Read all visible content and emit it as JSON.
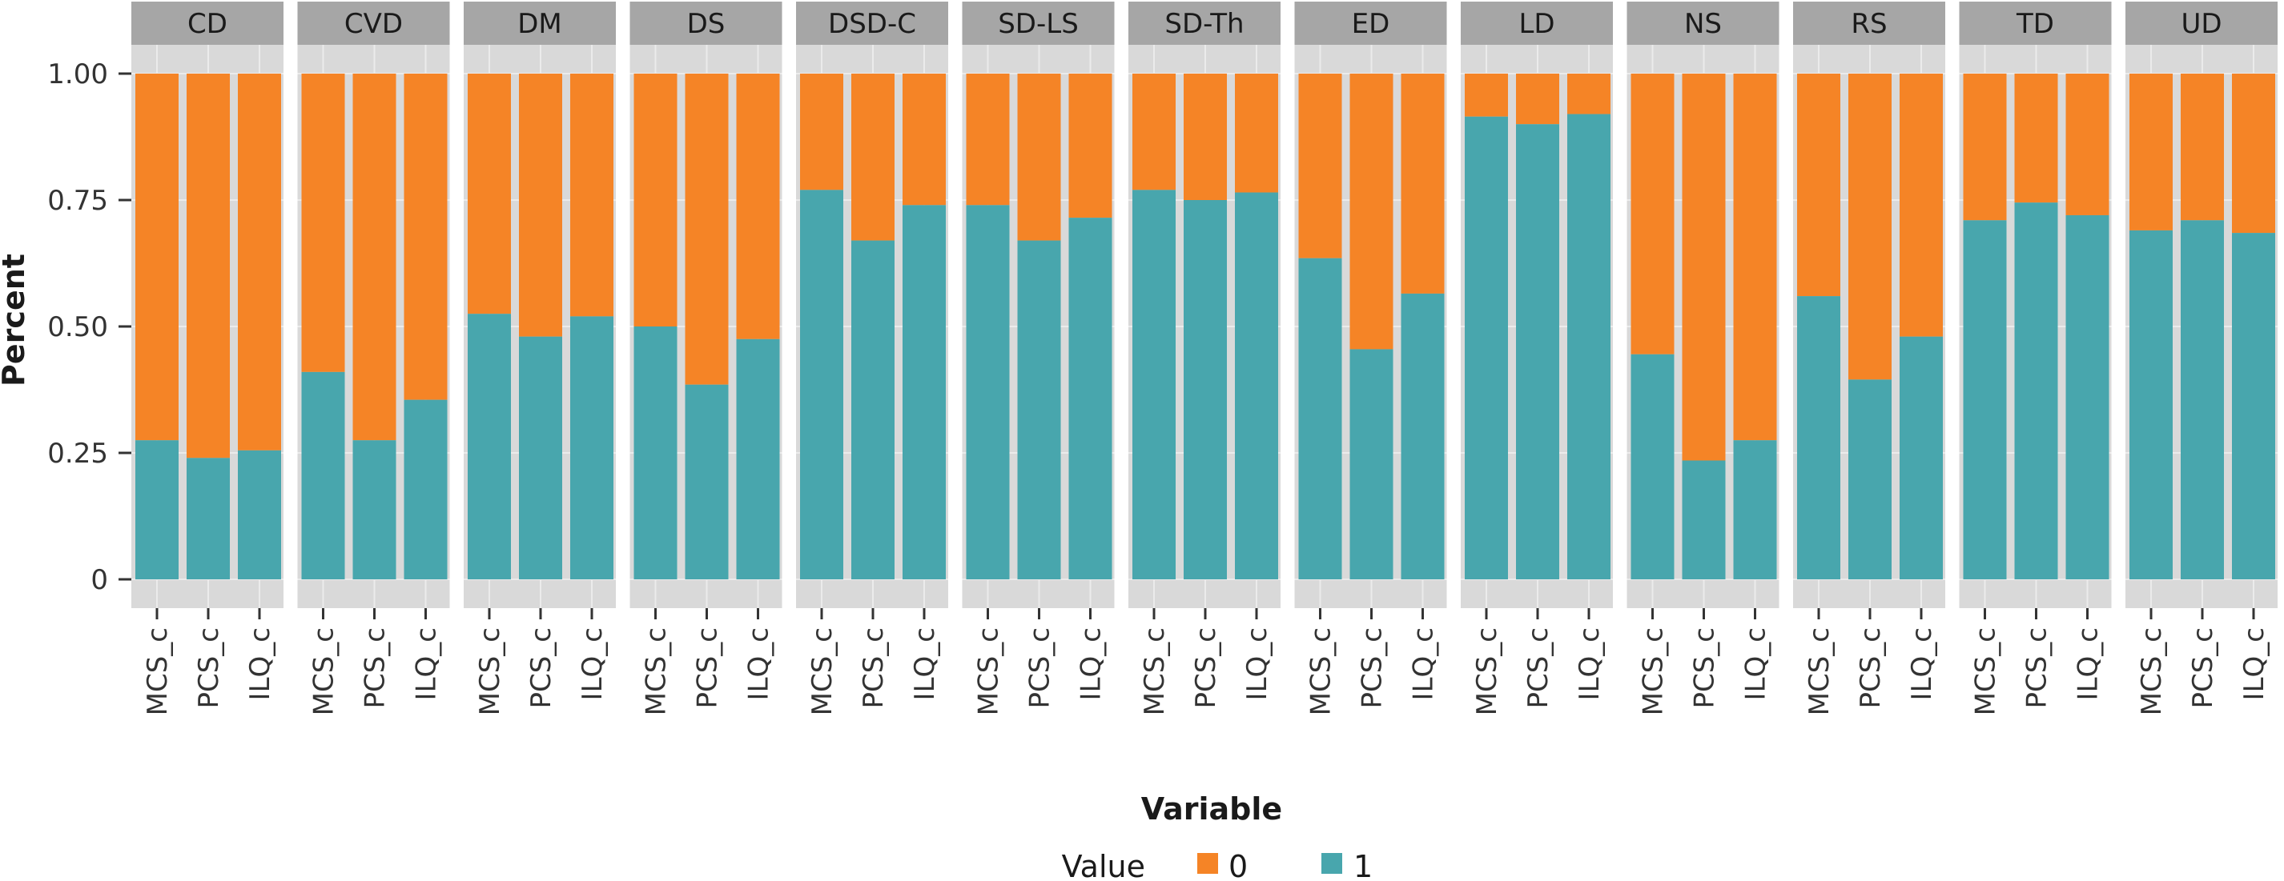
{
  "chart_data": {
    "type": "bar",
    "stacked": true,
    "facet_by": "panel",
    "ylabel": "Percent",
    "xlabel": "Variable",
    "ylim": [
      0,
      1
    ],
    "y_ticks": [
      "0",
      "0.25",
      "0.50",
      "0.75",
      "1.00"
    ],
    "y_tick_values": [
      0,
      0.25,
      0.5,
      0.75,
      1.0
    ],
    "grid": true,
    "legend": {
      "title": "Value",
      "placement": "bottom",
      "entries": [
        {
          "label": "0",
          "color": "#F58426"
        },
        {
          "label": "1",
          "color": "#48A6AD"
        }
      ]
    },
    "categories": [
      "MCS_c",
      "PCS_c",
      "ILQ_c"
    ],
    "panels": [
      {
        "name": "CD",
        "value_1": [
          0.275,
          0.24,
          0.255
        ]
      },
      {
        "name": "CVD",
        "value_1": [
          0.41,
          0.275,
          0.355
        ]
      },
      {
        "name": "DM",
        "value_1": [
          0.525,
          0.48,
          0.52
        ]
      },
      {
        "name": "DS",
        "value_1": [
          0.5,
          0.385,
          0.475
        ]
      },
      {
        "name": "DSD-C",
        "value_1": [
          0.77,
          0.67,
          0.74
        ]
      },
      {
        "name": "SD-LS",
        "value_1": [
          0.74,
          0.67,
          0.715
        ]
      },
      {
        "name": "SD-Th",
        "value_1": [
          0.77,
          0.75,
          0.765
        ]
      },
      {
        "name": "ED",
        "value_1": [
          0.635,
          0.455,
          0.565
        ]
      },
      {
        "name": "LD",
        "value_1": [
          0.915,
          0.9,
          0.92
        ]
      },
      {
        "name": "NS",
        "value_1": [
          0.445,
          0.235,
          0.275
        ]
      },
      {
        "name": "RS",
        "value_1": [
          0.56,
          0.395,
          0.48
        ]
      },
      {
        "name": "TD",
        "value_1": [
          0.71,
          0.745,
          0.72
        ]
      },
      {
        "name": "UD",
        "value_1": [
          0.69,
          0.71,
          0.685
        ]
      }
    ],
    "colors": {
      "value_0": "#F58426",
      "value_1": "#48A6AD",
      "panel_bg": "#D9D9D9",
      "strip_bg": "#A6A6A6",
      "grid": "#EBEBEB"
    }
  }
}
